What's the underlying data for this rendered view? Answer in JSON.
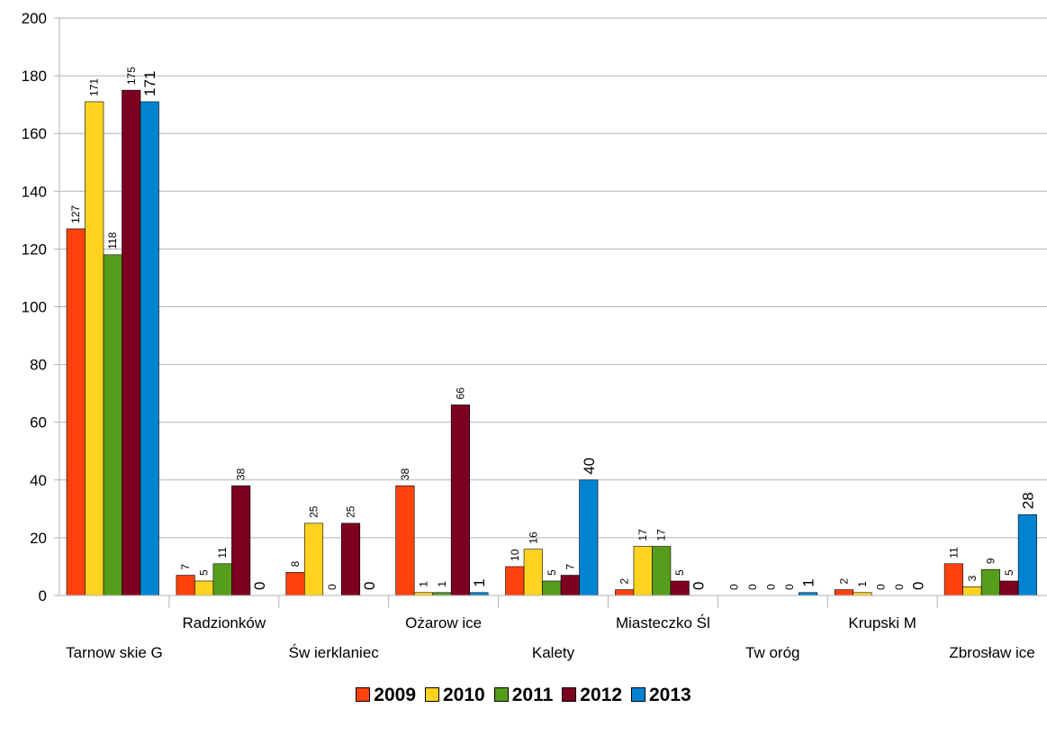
{
  "chart_data": {
    "type": "bar",
    "categories": [
      "Tarnow skie G",
      "Radzionków",
      "Św ierklaniec",
      "Ożarow ice",
      "Kalety",
      "Miasteczko Śl",
      "Tw oróg",
      "Krupski M",
      "Zbrosław ice"
    ],
    "series": [
      {
        "name": "2009",
        "color": "#ff420e",
        "values": [
          127,
          7,
          8,
          38,
          10,
          2,
          0,
          2,
          11
        ]
      },
      {
        "name": "2010",
        "color": "#ffd320",
        "values": [
          171,
          5,
          25,
          1,
          16,
          17,
          0,
          1,
          3
        ]
      },
      {
        "name": "2011",
        "color": "#579d1c",
        "values": [
          118,
          11,
          0,
          1,
          5,
          17,
          0,
          0,
          9
        ]
      },
      {
        "name": "2012",
        "color": "#7e0021",
        "values": [
          175,
          38,
          25,
          66,
          7,
          5,
          0,
          0,
          5
        ]
      },
      {
        "name": "2013",
        "color": "#0084d1",
        "values": [
          171,
          0,
          0,
          1,
          40,
          0,
          1,
          0,
          28
        ]
      }
    ],
    "ylim": [
      0,
      200
    ],
    "yticks": [
      0,
      20,
      40,
      60,
      80,
      100,
      120,
      140,
      160,
      180,
      200
    ],
    "grid": true,
    "legend_position": "bottom",
    "title": "",
    "xlabel": "",
    "ylabel": ""
  }
}
